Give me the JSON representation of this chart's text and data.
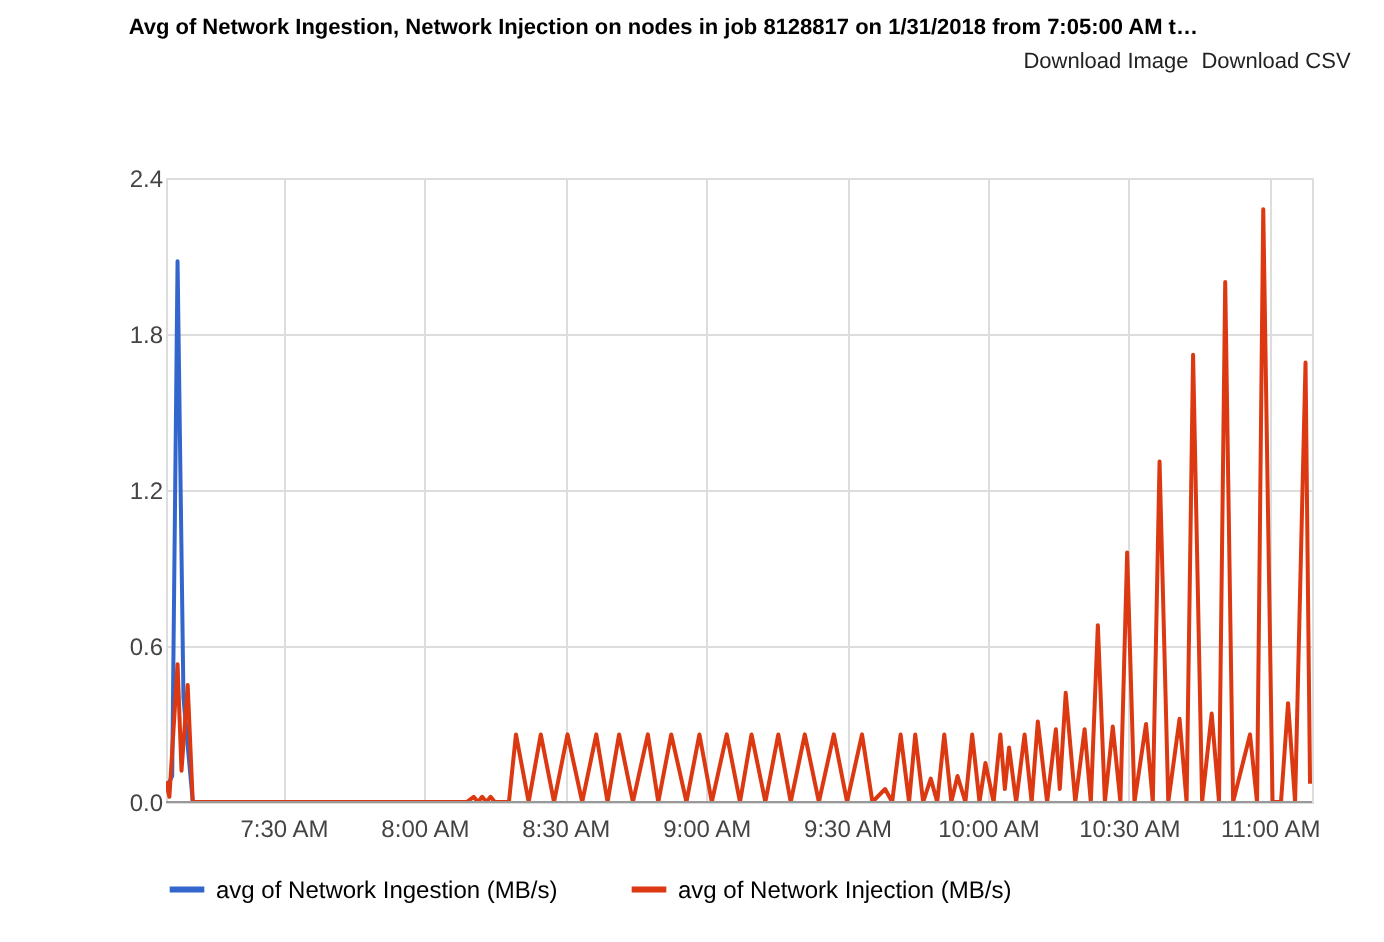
{
  "chart_data": {
    "type": "line",
    "title": "Avg of Network Ingestion, Network Injection on nodes in job 8128817 on 1/31/2018 from 7:05:00 AM t…",
    "annotations": [
      "Download Image",
      "Download CSV"
    ],
    "series": [
      {
        "name": "avg of Network Ingestion (MB/s)",
        "color": "#3366cc",
        "x": [
          7.083,
          7.105,
          7.124,
          7.145,
          7.178
        ],
        "values": [
          0.05,
          0.1,
          2.08,
          0.4,
          0.0
        ]
      },
      {
        "name": "avg of Network Injection (MB/s)",
        "color": "#dc3912",
        "x": [
          7.083,
          7.095,
          7.124,
          7.138,
          7.16,
          7.178,
          8.15,
          8.175,
          8.19,
          8.205,
          8.22,
          8.235,
          8.25,
          8.3,
          8.325,
          8.37,
          8.413,
          8.46,
          8.508,
          8.56,
          8.61,
          8.65,
          8.691,
          8.74,
          8.793,
          8.83,
          8.876,
          8.93,
          8.976,
          9.02,
          9.073,
          9.12,
          9.161,
          9.21,
          9.256,
          9.3,
          9.35,
          9.4,
          9.453,
          9.5,
          9.553,
          9.59,
          9.635,
          9.66,
          9.69,
          9.72,
          9.742,
          9.77,
          9.797,
          9.82,
          9.845,
          9.87,
          9.892,
          9.92,
          9.944,
          9.97,
          9.991,
          10.02,
          10.044,
          10.06,
          10.075,
          10.1,
          10.13,
          10.155,
          10.177,
          10.21,
          10.241,
          10.255,
          10.276,
          10.31,
          10.343,
          10.365,
          10.39,
          10.415,
          10.443,
          10.47,
          10.494,
          10.52,
          10.561,
          10.585,
          10.609,
          10.64,
          10.68,
          10.705,
          10.728,
          10.76,
          10.794,
          10.82,
          10.842,
          10.87,
          10.93,
          10.955,
          10.977,
          11.01,
          11.04,
          11.065,
          11.09,
          11.127,
          11.143
        ],
        "values": [
          0.08,
          0.02,
          0.53,
          0.12,
          0.45,
          0.0,
          0.0,
          0.02,
          0.0,
          0.02,
          0.0,
          0.02,
          0.0,
          0.0,
          0.26,
          0.0,
          0.26,
          0.0,
          0.26,
          0.0,
          0.26,
          0.0,
          0.26,
          0.0,
          0.26,
          0.0,
          0.26,
          0.0,
          0.26,
          0.0,
          0.26,
          0.0,
          0.26,
          0.0,
          0.26,
          0.0,
          0.26,
          0.0,
          0.26,
          0.0,
          0.26,
          0.0,
          0.05,
          0.0,
          0.26,
          0.0,
          0.26,
          0.0,
          0.09,
          0.0,
          0.26,
          0.0,
          0.1,
          0.0,
          0.26,
          0.0,
          0.15,
          0.0,
          0.26,
          0.05,
          0.21,
          0.0,
          0.26,
          0.0,
          0.31,
          0.0,
          0.28,
          0.05,
          0.42,
          0.0,
          0.28,
          0.0,
          0.68,
          0.0,
          0.29,
          0.0,
          0.96,
          0.0,
          0.3,
          0.0,
          1.31,
          0.0,
          0.32,
          0.0,
          1.72,
          0.0,
          0.34,
          0.0,
          2.0,
          0.0,
          0.26,
          0.0,
          2.28,
          0.0,
          0.0,
          0.38,
          0.0,
          1.69,
          0.07
        ]
      }
    ],
    "xlim": [
      7.083,
      11.15
    ],
    "xticks": [
      {
        "value": 7.5,
        "label": "7:30 AM"
      },
      {
        "value": 8,
        "label": "8:00 AM"
      },
      {
        "value": 8.5,
        "label": "8:30 AM"
      },
      {
        "value": 9,
        "label": "9:00 AM"
      },
      {
        "value": 9.5,
        "label": "9:30 AM"
      },
      {
        "value": 10,
        "label": "10:00 AM"
      },
      {
        "value": 10.5,
        "label": "10:30 AM"
      },
      {
        "value": 11,
        "label": "11:00 AM"
      }
    ],
    "ylim": [
      0,
      2.4
    ],
    "yticks": [
      {
        "value": 0,
        "label": "0.0"
      },
      0.6,
      1.2,
      1.8,
      2.4
    ],
    "grid": true,
    "legend": "bottom",
    "marker": "none",
    "line_style": "solid"
  }
}
